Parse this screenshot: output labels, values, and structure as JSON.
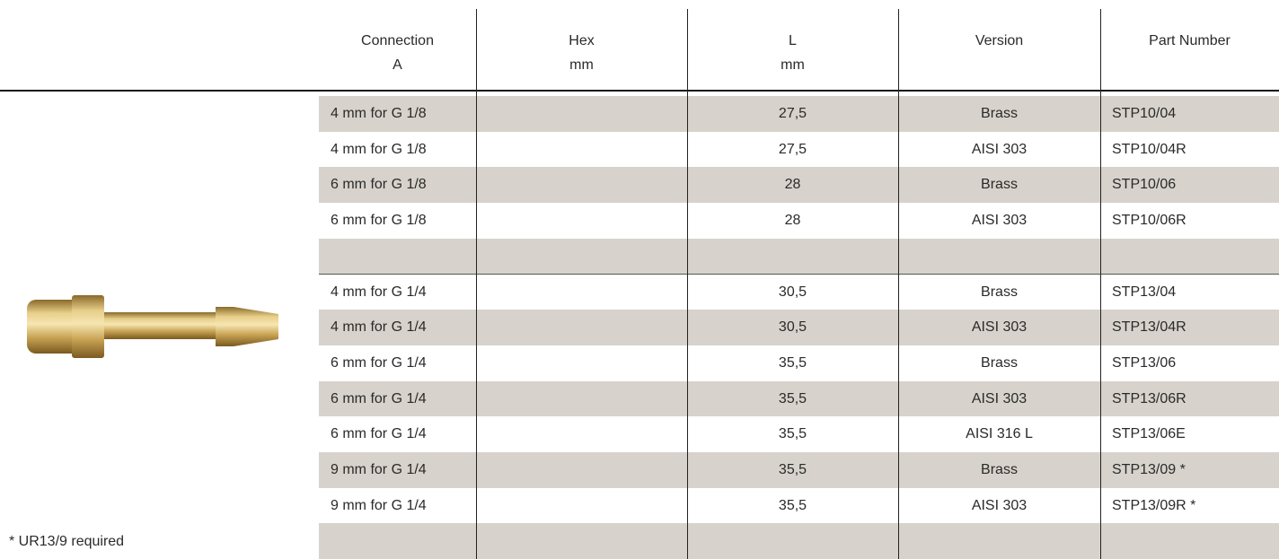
{
  "table": {
    "columns": [
      [
        "Connection",
        "A"
      ],
      [
        "Hex",
        "mm"
      ],
      [
        "L",
        "mm"
      ],
      [
        "Version"
      ],
      [
        "Part Number"
      ]
    ],
    "rows": [
      [
        "4 mm for G 1/8",
        null,
        "27,5",
        "Brass",
        "STP10/04"
      ],
      [
        "4 mm for G 1/8",
        null,
        "27,5",
        "AISI 303",
        "STP10/04R"
      ],
      [
        "6 mm for G 1/8",
        null,
        "28",
        "Brass",
        "STP10/06"
      ],
      [
        "6 mm for G 1/8",
        null,
        "28",
        "AISI 303",
        "STP10/06R"
      ],
      [
        null,
        null,
        null,
        null,
        null
      ],
      [
        "4 mm for G 1/4",
        null,
        "30,5",
        "Brass",
        "STP13/04"
      ],
      [
        "4 mm for G 1/4",
        null,
        "30,5",
        "AISI 303",
        "STP13/04R"
      ],
      [
        "6 mm for G 1/4",
        null,
        "35,5",
        "Brass",
        "STP13/06"
      ],
      [
        "6 mm for G 1/4",
        null,
        "35,5",
        "AISI 303",
        "STP13/06R"
      ],
      [
        "6 mm for G 1/4",
        null,
        "35,5",
        "AISI 316 L",
        "STP13/06E"
      ],
      [
        "9 mm for G 1/4",
        null,
        "35,5",
        "Brass",
        "STP13/09 *"
      ],
      [
        "9 mm for G 1/4",
        null,
        "35,5",
        "AISI 303",
        "STP13/09R *"
      ],
      [
        null,
        null,
        null,
        null,
        null
      ]
    ]
  },
  "footnote": "* UR13/9 required"
}
